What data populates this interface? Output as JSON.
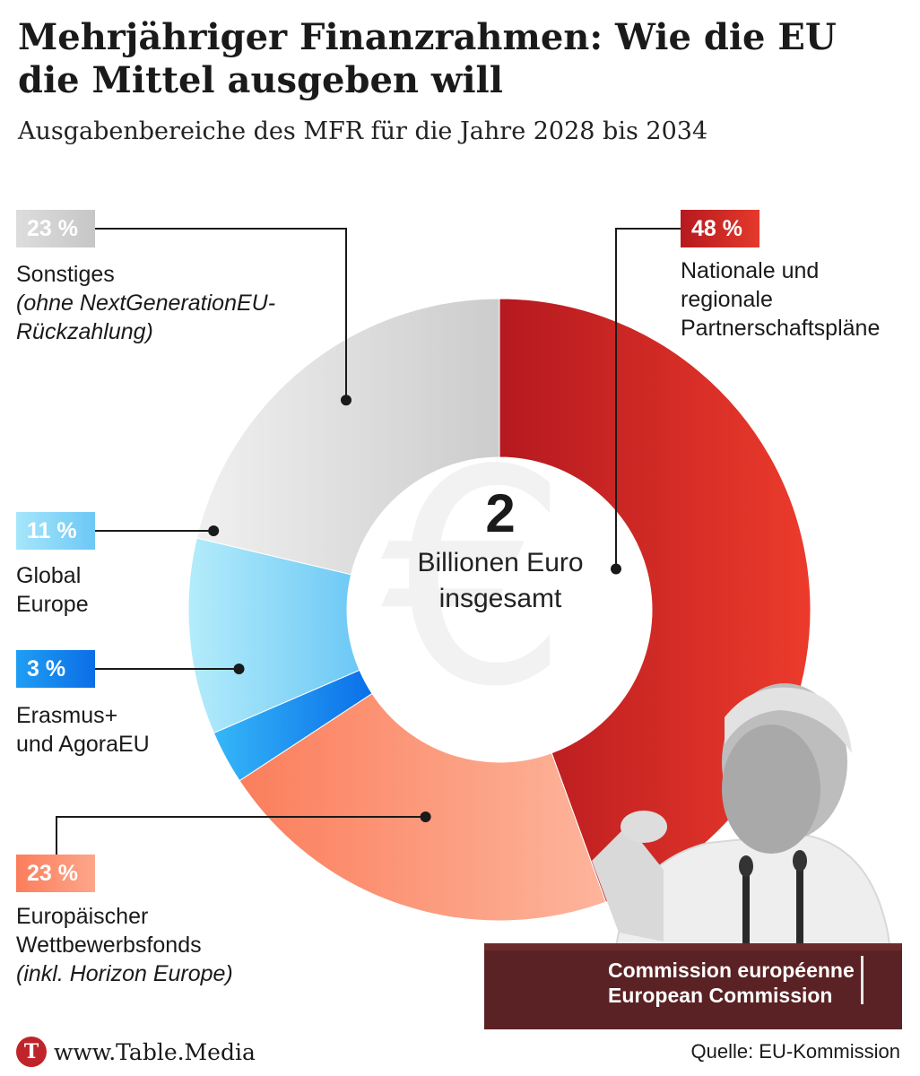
{
  "header": {
    "title": "Mehrjähriger Finanzrahmen: Wie die EU\ndie Mittel ausgeben will",
    "subtitle": "Ausgabenbereiche des MFR für die Jahre 2028 bis 2034"
  },
  "chart_data": {
    "type": "donut",
    "title": "Mehrjähriger Finanzrahmen: Wie die EU die Mittel ausgeben will",
    "subtitle": "Ausgabenbereiche des MFR für die Jahre 2028 bis 2034",
    "unit": "%",
    "center_value": "2",
    "center_label": "Billionen Euro\ninsgesamt",
    "slices": [
      {
        "label": "Nationale und\nregionale\nPartnerschaftspläne",
        "note": "",
        "value": 48,
        "value_label": "48 %",
        "color": "#d42a2a"
      },
      {
        "label": "Europäischer\nWettbewerbsfonds",
        "note": "(inkl. Horizon Europe)",
        "value": 23,
        "value_label": "23 %",
        "color": "#fc8c6e"
      },
      {
        "label": "Erasmus+\nund AgoraEU",
        "note": "",
        "value": 3,
        "value_label": "3 %",
        "color": "#1e90f0"
      },
      {
        "label": "Global\nEurope",
        "note": "",
        "value": 11,
        "value_label": "11 %",
        "color": "#8fd8f8"
      },
      {
        "label": "Sonstiges",
        "note": "(ohne NextGenerationEU-\nRückzahlung)",
        "value": 23,
        "value_label": "23 %",
        "color": "#d8d8d8"
      }
    ]
  },
  "photo": {
    "caption_line1": "Commission européenne",
    "caption_line2": "European Commission"
  },
  "footer": {
    "logo_letter": "T",
    "brand": "www.Table.Media",
    "source": "Quelle: EU-Kommission"
  }
}
